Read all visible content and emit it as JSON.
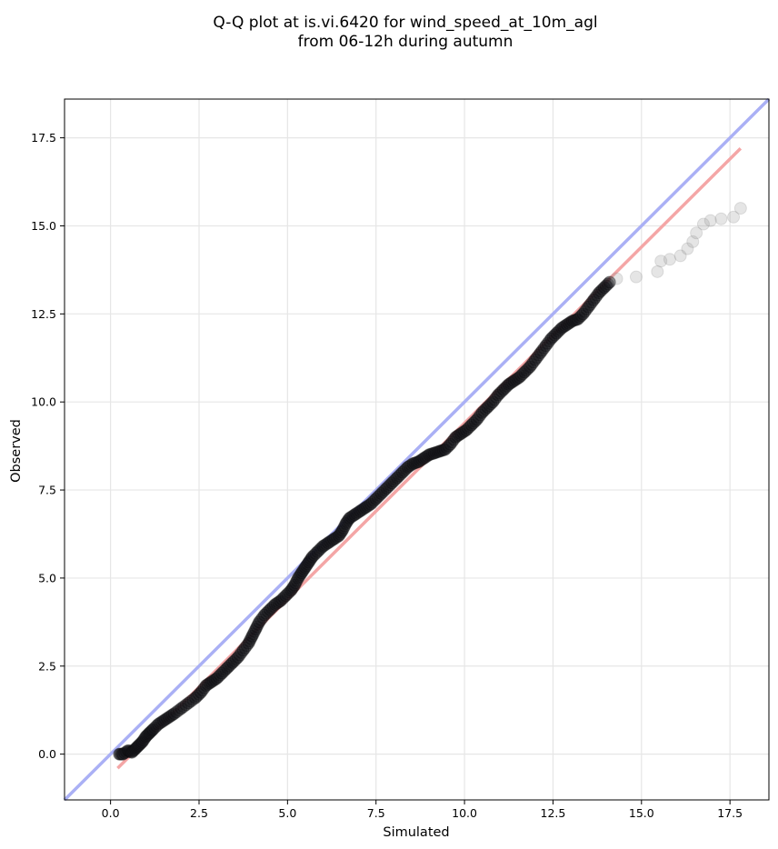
{
  "chart_data": {
    "type": "scatter",
    "title_line1": "Q-Q plot at is.vi.6420 for wind_speed_at_10m_agl",
    "title_line2": "from 06-12h during autumn",
    "xlabel": "Simulated",
    "ylabel": "Observed",
    "xlim": [
      -1.3,
      18.6
    ],
    "ylim": [
      -1.3,
      18.6
    ],
    "xticks": [
      0.0,
      2.5,
      5.0,
      7.5,
      10.0,
      12.5,
      15.0,
      17.5
    ],
    "yticks": [
      0.0,
      2.5,
      5.0,
      7.5,
      10.0,
      12.5,
      15.0,
      17.5
    ],
    "xtick_labels": [
      "0.0",
      "2.5",
      "5.0",
      "7.5",
      "10.0",
      "12.5",
      "15.0",
      "17.5"
    ],
    "ytick_labels": [
      "0.0",
      "2.5",
      "5.0",
      "7.5",
      "10.0",
      "12.5",
      "15.0",
      "17.5"
    ],
    "grid": true,
    "series": [
      {
        "kind": "quantiles",
        "color": "#000000",
        "points": [
          [
            0.25,
            0.0
          ],
          [
            0.35,
            0.0
          ],
          [
            0.5,
            0.1
          ],
          [
            0.6,
            0.05
          ],
          [
            0.7,
            0.15
          ],
          [
            0.8,
            0.25
          ],
          [
            0.9,
            0.35
          ],
          [
            1.0,
            0.5
          ],
          [
            1.1,
            0.6
          ],
          [
            1.2,
            0.7
          ],
          [
            1.35,
            0.85
          ],
          [
            1.5,
            0.95
          ],
          [
            1.65,
            1.05
          ],
          [
            1.8,
            1.15
          ],
          [
            2.0,
            1.3
          ],
          [
            2.2,
            1.45
          ],
          [
            2.4,
            1.6
          ],
          [
            2.55,
            1.75
          ],
          [
            2.7,
            1.95
          ],
          [
            2.85,
            2.05
          ],
          [
            3.0,
            2.15
          ],
          [
            3.15,
            2.3
          ],
          [
            3.3,
            2.45
          ],
          [
            3.45,
            2.6
          ],
          [
            3.6,
            2.75
          ],
          [
            3.75,
            2.95
          ],
          [
            3.9,
            3.15
          ],
          [
            4.0,
            3.35
          ],
          [
            4.1,
            3.55
          ],
          [
            4.2,
            3.75
          ],
          [
            4.35,
            3.95
          ],
          [
            4.5,
            4.1
          ],
          [
            4.65,
            4.25
          ],
          [
            4.8,
            4.35
          ],
          [
            4.95,
            4.5
          ],
          [
            5.1,
            4.65
          ],
          [
            5.2,
            4.8
          ],
          [
            5.3,
            5.0
          ],
          [
            5.4,
            5.15
          ],
          [
            5.5,
            5.3
          ],
          [
            5.6,
            5.45
          ],
          [
            5.7,
            5.6
          ],
          [
            5.85,
            5.75
          ],
          [
            6.0,
            5.9
          ],
          [
            6.15,
            6.0
          ],
          [
            6.3,
            6.1
          ],
          [
            6.45,
            6.2
          ],
          [
            6.55,
            6.35
          ],
          [
            6.65,
            6.55
          ],
          [
            6.75,
            6.7
          ],
          [
            6.9,
            6.8
          ],
          [
            7.05,
            6.9
          ],
          [
            7.2,
            7.0
          ],
          [
            7.35,
            7.1
          ],
          [
            7.5,
            7.25
          ],
          [
            7.65,
            7.4
          ],
          [
            7.8,
            7.55
          ],
          [
            7.95,
            7.7
          ],
          [
            8.1,
            7.85
          ],
          [
            8.25,
            8.0
          ],
          [
            8.4,
            8.15
          ],
          [
            8.55,
            8.25
          ],
          [
            8.7,
            8.3
          ],
          [
            8.85,
            8.4
          ],
          [
            9.0,
            8.5
          ],
          [
            9.15,
            8.55
          ],
          [
            9.3,
            8.6
          ],
          [
            9.45,
            8.65
          ],
          [
            9.6,
            8.8
          ],
          [
            9.75,
            9.0
          ],
          [
            9.9,
            9.1
          ],
          [
            10.05,
            9.2
          ],
          [
            10.2,
            9.35
          ],
          [
            10.35,
            9.5
          ],
          [
            10.5,
            9.7
          ],
          [
            10.65,
            9.85
          ],
          [
            10.8,
            10.0
          ],
          [
            10.95,
            10.2
          ],
          [
            11.1,
            10.35
          ],
          [
            11.25,
            10.5
          ],
          [
            11.4,
            10.6
          ],
          [
            11.55,
            10.7
          ],
          [
            11.7,
            10.85
          ],
          [
            11.85,
            11.0
          ],
          [
            12.0,
            11.2
          ],
          [
            12.15,
            11.4
          ],
          [
            12.3,
            11.6
          ],
          [
            12.45,
            11.8
          ],
          [
            12.6,
            11.95
          ],
          [
            12.75,
            12.1
          ],
          [
            12.9,
            12.2
          ],
          [
            13.05,
            12.3
          ],
          [
            13.2,
            12.35
          ],
          [
            13.35,
            12.5
          ],
          [
            13.5,
            12.7
          ],
          [
            13.65,
            12.9
          ],
          [
            13.8,
            13.1
          ],
          [
            13.95,
            13.25
          ],
          [
            14.1,
            13.4
          ],
          [
            14.3,
            13.5
          ],
          [
            14.85,
            13.55
          ],
          [
            15.45,
            13.7
          ],
          [
            15.55,
            14.0
          ],
          [
            15.8,
            14.05
          ],
          [
            16.1,
            14.15
          ],
          [
            16.3,
            14.35
          ],
          [
            16.45,
            14.55
          ],
          [
            16.55,
            14.8
          ],
          [
            16.75,
            15.05
          ],
          [
            16.95,
            15.15
          ],
          [
            17.25,
            15.2
          ],
          [
            17.6,
            15.25
          ],
          [
            17.8,
            15.5
          ]
        ]
      },
      {
        "kind": "identity_line",
        "color": "#aab0f5",
        "x": [
          -1.3,
          18.6
        ],
        "y": [
          -1.3,
          18.6
        ]
      },
      {
        "kind": "fit_line",
        "color": "#f4a6a6",
        "x": [
          0.2,
          17.8
        ],
        "y": [
          -0.4,
          17.2
        ]
      }
    ]
  }
}
